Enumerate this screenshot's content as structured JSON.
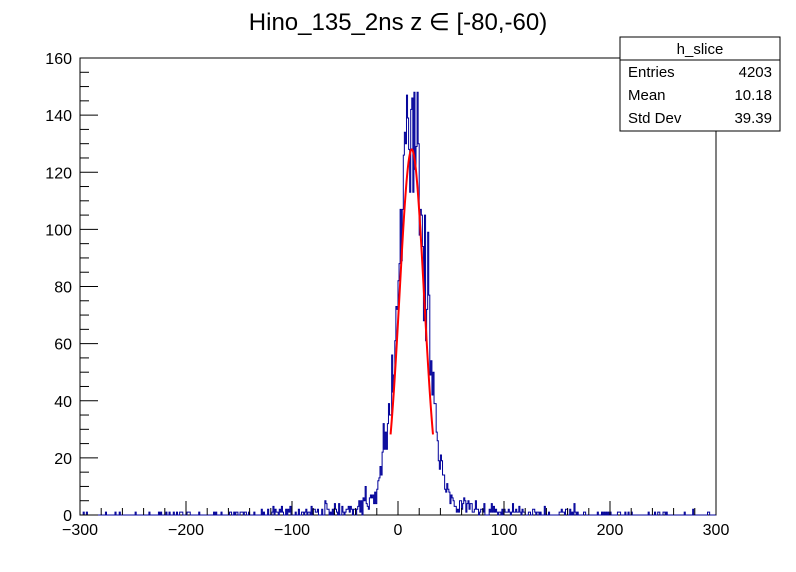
{
  "chart_data": {
    "type": "histogram",
    "title": "Hino_135_2ns z  ∈ [-80,-60)",
    "xlabel": "",
    "ylabel": "",
    "xlim": [
      -300,
      300
    ],
    "ylim": [
      0,
      160
    ],
    "x_ticks": [
      -300,
      -200,
      -100,
      0,
      100,
      200,
      300
    ],
    "y_ticks": [
      0,
      20,
      40,
      60,
      80,
      100,
      120,
      140,
      160
    ],
    "grid": false,
    "histogram_color": "#000099",
    "fit_color": "#ff0000",
    "stats_box": {
      "name": "h_slice",
      "rows": [
        {
          "label": "Entries",
          "value": "4203"
        },
        {
          "label": "Mean",
          "value": "10.18"
        },
        {
          "label": "Std Dev",
          "value": "39.39"
        }
      ]
    },
    "histogram_shape": {
      "bin_width": 1,
      "entries": 4203,
      "peak_x": 13,
      "peak_y": 140,
      "tail_note": "sparse counts of 0-2 beyond |x-10|>100"
    },
    "fit": {
      "type": "gaussian",
      "x_range": [
        -7,
        33
      ],
      "mean": 13,
      "sigma": 11.5,
      "amplitude": 128
    }
  }
}
